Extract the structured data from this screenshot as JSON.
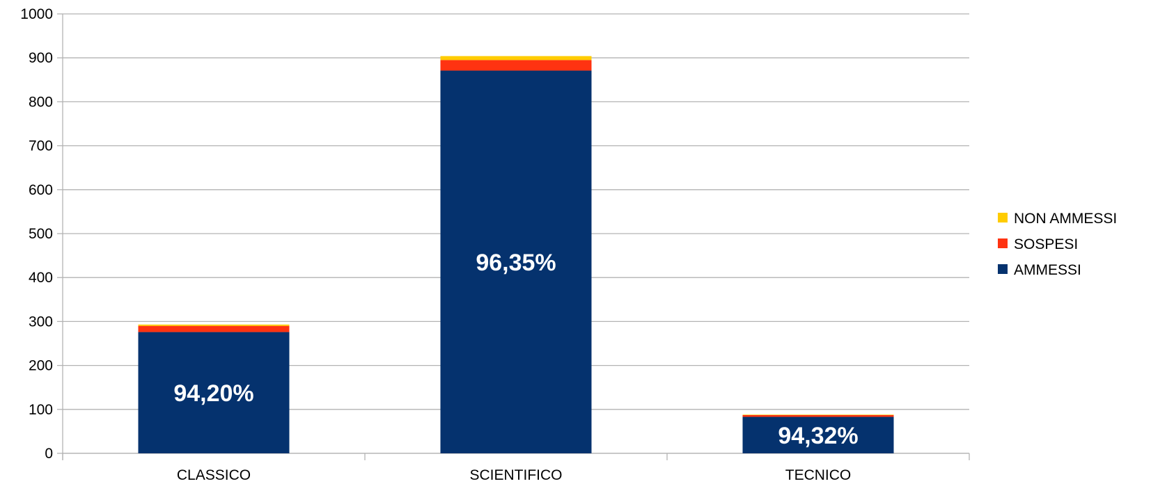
{
  "chart_data": {
    "type": "bar",
    "stacked": true,
    "categories": [
      "CLASSICO",
      "SCIENTIFICO",
      "TECNICO"
    ],
    "series": [
      {
        "name": "AMMESSI",
        "values": [
          276,
          871,
          83
        ],
        "color": "#05326e"
      },
      {
        "name": "SOSPESI",
        "values": [
          14,
          24,
          4
        ],
        "color": "#ff3311"
      },
      {
        "name": "NON AMMESSI",
        "values": [
          3,
          9,
          1
        ],
        "color": "#ffcc00"
      }
    ],
    "data_labels": [
      "94,20%",
      "96,35%",
      "94,32%"
    ],
    "ylim": [
      0,
      1000
    ],
    "yticks": [
      0,
      100,
      200,
      300,
      400,
      500,
      600,
      700,
      800,
      900,
      1000
    ],
    "grid": true,
    "legend_position": "right",
    "legend_order": [
      "NON AMMESSI",
      "SOSPESI",
      "AMMESSI"
    ],
    "title": "",
    "xlabel": "",
    "ylabel": ""
  }
}
